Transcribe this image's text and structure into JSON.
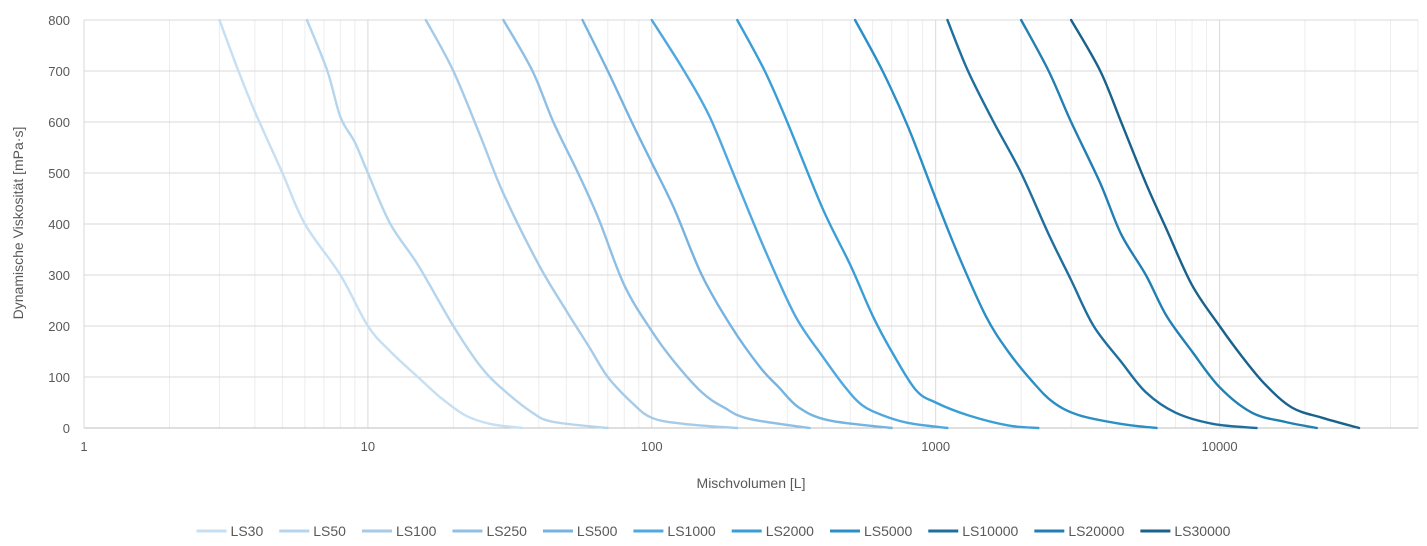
{
  "chart_data": {
    "type": "line",
    "title": "",
    "xlabel": "Mischvolumen [L]",
    "ylabel": "Dynamische Viskosität [mPa·s]",
    "x_scale": "log",
    "xlim": [
      1,
      50000
    ],
    "ylim": [
      0,
      800
    ],
    "x_ticks": [
      1,
      10,
      100,
      1000,
      10000
    ],
    "x_tick_labels": [
      "1",
      "10",
      "100",
      "1000",
      "10000"
    ],
    "y_ticks": [
      0,
      100,
      200,
      300,
      400,
      500,
      600,
      700,
      800
    ],
    "y_tick_labels": [
      "0",
      "100",
      "200",
      "300",
      "400",
      "500",
      "600",
      "700",
      "800"
    ],
    "grid": true,
    "legend_position": "bottom",
    "series": [
      {
        "name": "LS30",
        "color": "#c6dff2",
        "points": [
          [
            3.0,
            800
          ],
          [
            3.5,
            700
          ],
          [
            4.0,
            620
          ],
          [
            5.0,
            500
          ],
          [
            6.0,
            400
          ],
          [
            8.0,
            300
          ],
          [
            10.0,
            200
          ],
          [
            12.0,
            150
          ],
          [
            15.0,
            100
          ],
          [
            18.0,
            60
          ],
          [
            22.0,
            25
          ],
          [
            27.0,
            8
          ],
          [
            35.0,
            0
          ]
        ]
      },
      {
        "name": "LS50",
        "color": "#b5d5ed",
        "points": [
          [
            6.1,
            800
          ],
          [
            7.2,
            700
          ],
          [
            8.0,
            610
          ],
          [
            9.0,
            560
          ],
          [
            10.0,
            500
          ],
          [
            12.0,
            400
          ],
          [
            15.0,
            320
          ],
          [
            20.0,
            200
          ],
          [
            25.0,
            120
          ],
          [
            30.0,
            75
          ],
          [
            38.0,
            30
          ],
          [
            45.0,
            12
          ],
          [
            70.0,
            0
          ]
        ]
      },
      {
        "name": "LS100",
        "color": "#a6cbe8",
        "points": [
          [
            16.0,
            800
          ],
          [
            20.0,
            700
          ],
          [
            25.0,
            570
          ],
          [
            30.0,
            460
          ],
          [
            40.0,
            320
          ],
          [
            50.0,
            230
          ],
          [
            60.0,
            160
          ],
          [
            70.0,
            100
          ],
          [
            85.0,
            50
          ],
          [
            100.0,
            20
          ],
          [
            130.0,
            8
          ],
          [
            200.0,
            0
          ]
        ]
      },
      {
        "name": "LS250",
        "color": "#8fbfe4",
        "points": [
          [
            30.0,
            800
          ],
          [
            38.0,
            700
          ],
          [
            45.0,
            600
          ],
          [
            55.0,
            500
          ],
          [
            65.0,
            410
          ],
          [
            80.0,
            280
          ],
          [
            100.0,
            190
          ],
          [
            120.0,
            130
          ],
          [
            150.0,
            70
          ],
          [
            180.0,
            40
          ],
          [
            220.0,
            18
          ],
          [
            360.0,
            0
          ]
        ]
      },
      {
        "name": "LS500",
        "color": "#75b3e0",
        "points": [
          [
            57.0,
            800
          ],
          [
            70.0,
            700
          ],
          [
            85.0,
            600
          ],
          [
            100.0,
            520
          ],
          [
            120.0,
            430
          ],
          [
            150.0,
            300
          ],
          [
            190.0,
            200
          ],
          [
            240.0,
            120
          ],
          [
            280.0,
            80
          ],
          [
            330.0,
            40
          ],
          [
            420.0,
            15
          ],
          [
            700.0,
            0
          ]
        ]
      },
      {
        "name": "LS1000",
        "color": "#4fa8df",
        "points": [
          [
            100.0,
            800
          ],
          [
            130.0,
            700
          ],
          [
            160.0,
            610
          ],
          [
            200.0,
            480
          ],
          [
            250.0,
            350
          ],
          [
            320.0,
            220
          ],
          [
            400.0,
            140
          ],
          [
            480.0,
            80
          ],
          [
            550.0,
            45
          ],
          [
            650.0,
            25
          ],
          [
            800.0,
            10
          ],
          [
            1100.0,
            0
          ]
        ]
      },
      {
        "name": "LS2000",
        "color": "#3a9ed6",
        "points": [
          [
            200.0,
            800
          ],
          [
            250.0,
            700
          ],
          [
            300.0,
            600
          ],
          [
            400.0,
            430
          ],
          [
            500.0,
            320
          ],
          [
            600.0,
            220
          ],
          [
            700.0,
            150
          ],
          [
            850.0,
            75
          ],
          [
            1000.0,
            50
          ],
          [
            1300.0,
            25
          ],
          [
            1800.0,
            5
          ],
          [
            2300.0,
            0
          ]
        ]
      },
      {
        "name": "LS5000",
        "color": "#2b8fc7",
        "points": [
          [
            520.0,
            800
          ],
          [
            650.0,
            700
          ],
          [
            800.0,
            590
          ],
          [
            1000.0,
            450
          ],
          [
            1200.0,
            340
          ],
          [
            1500.0,
            220
          ],
          [
            1800.0,
            150
          ],
          [
            2200.0,
            90
          ],
          [
            2600.0,
            50
          ],
          [
            3200.0,
            25
          ],
          [
            4500.0,
            8
          ],
          [
            6000.0,
            0
          ]
        ]
      },
      {
        "name": "LS10000",
        "color": "#1f6f9e",
        "points": [
          [
            1100.0,
            800
          ],
          [
            1300.0,
            700
          ],
          [
            1600.0,
            600
          ],
          [
            2000.0,
            500
          ],
          [
            2500.0,
            380
          ],
          [
            3000.0,
            290
          ],
          [
            3600.0,
            200
          ],
          [
            4500.0,
            130
          ],
          [
            5500.0,
            70
          ],
          [
            7000.0,
            30
          ],
          [
            9500.0,
            8
          ],
          [
            13500.0,
            0
          ]
        ]
      },
      {
        "name": "LS20000",
        "color": "#227fb3",
        "points": [
          [
            2000.0,
            800
          ],
          [
            2500.0,
            700
          ],
          [
            3000.0,
            600
          ],
          [
            3800.0,
            480
          ],
          [
            4500.0,
            380
          ],
          [
            5500.0,
            300
          ],
          [
            6500.0,
            220
          ],
          [
            8000.0,
            150
          ],
          [
            10000.0,
            80
          ],
          [
            13000.0,
            30
          ],
          [
            17000.0,
            12
          ],
          [
            22000.0,
            0
          ]
        ]
      },
      {
        "name": "LS30000",
        "color": "#19628c",
        "points": [
          [
            3000.0,
            800
          ],
          [
            3800.0,
            700
          ],
          [
            4500.0,
            600
          ],
          [
            5500.0,
            480
          ],
          [
            6500.0,
            390
          ],
          [
            8000.0,
            280
          ],
          [
            10000.0,
            200
          ],
          [
            12000.0,
            140
          ],
          [
            14500.0,
            85
          ],
          [
            18000.0,
            40
          ],
          [
            23000.0,
            20
          ],
          [
            31000.0,
            0
          ]
        ]
      }
    ]
  }
}
